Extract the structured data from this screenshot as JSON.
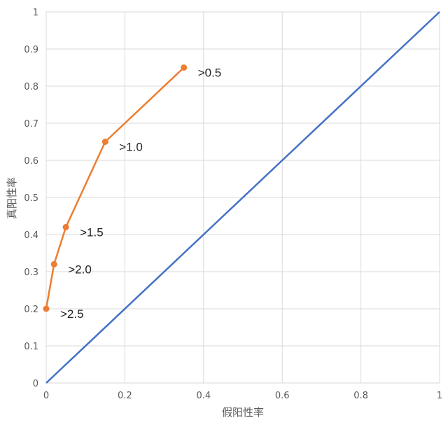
{
  "chart_data": {
    "type": "line",
    "title": "",
    "xlabel": "假阳性率",
    "ylabel": "真阳性率",
    "xlim": [
      0,
      1
    ],
    "ylim": [
      0,
      1
    ],
    "x_ticks": [
      "0",
      "0.2",
      "0.4",
      "0.6",
      "0.8",
      "1"
    ],
    "y_ticks": [
      "0",
      "0.1",
      "0.2",
      "0.3",
      "0.4",
      "0.5",
      "0.6",
      "0.7",
      "0.8",
      "0.9",
      "1"
    ],
    "grid": true,
    "series": [
      {
        "color": "#4472C4",
        "markers": false,
        "x": [
          0,
          1
        ],
        "y": [
          0,
          1
        ]
      },
      {
        "color": "#ED7D31",
        "markers": true,
        "x": [
          0,
          0.02,
          0.05,
          0.15,
          0.35
        ],
        "y": [
          0.2,
          0.32,
          0.42,
          0.65,
          0.85
        ],
        "labels": [
          ">2.5",
          ">2.0",
          ">1.5",
          ">1.0",
          ">0.5"
        ]
      }
    ]
  }
}
